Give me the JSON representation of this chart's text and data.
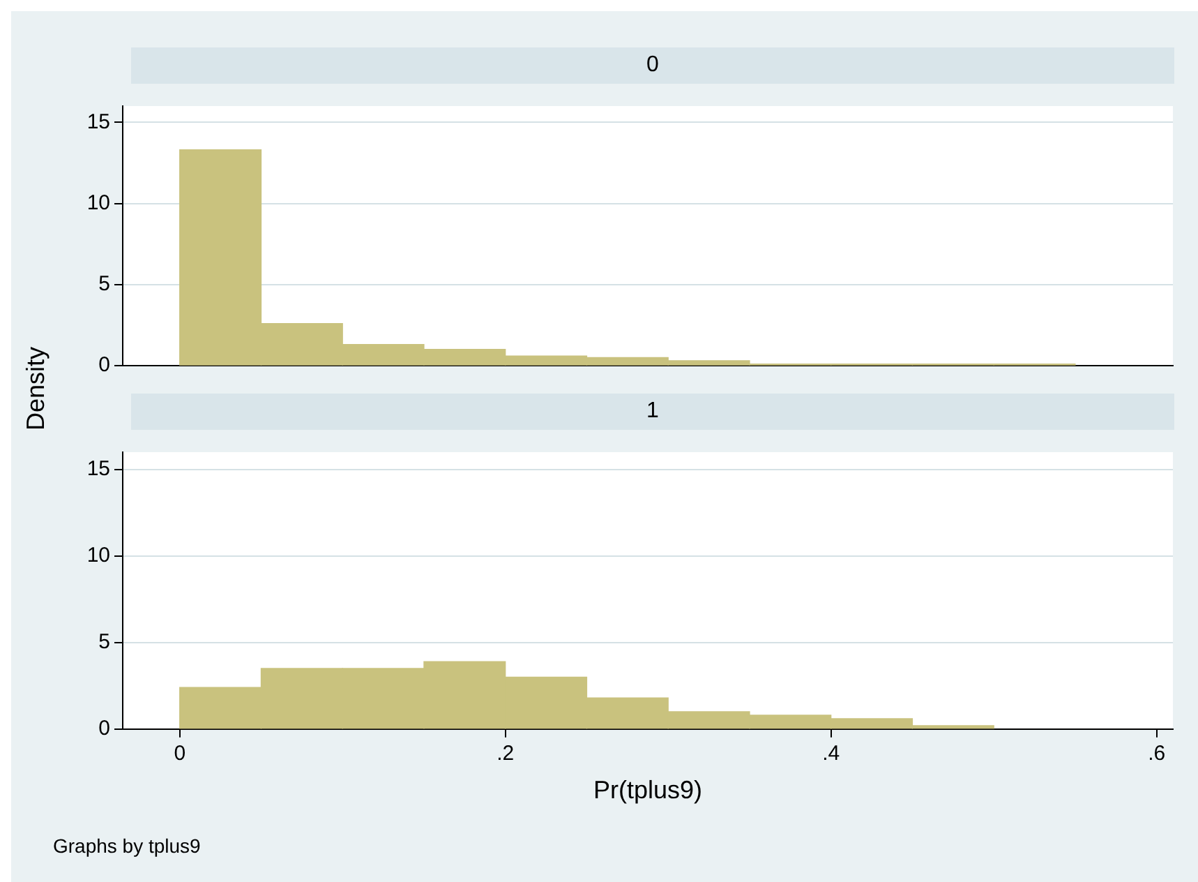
{
  "chart_data": [
    {
      "type": "histogram",
      "title": "0",
      "ylabel": "Density",
      "bins": [
        0,
        0.05,
        0.1,
        0.15,
        0.2,
        0.25,
        0.3,
        0.35,
        0.4,
        0.45,
        0.5,
        0.55
      ],
      "values": [
        13.3,
        2.6,
        1.3,
        1.0,
        0.6,
        0.5,
        0.3,
        0.1,
        0.1,
        0.1,
        0.1
      ],
      "color": "#c9c27e",
      "xlim": [
        -0.035,
        0.61
      ],
      "ylim": [
        0,
        16
      ],
      "yticks": [
        0,
        5,
        10,
        15
      ],
      "grid": "y",
      "tick_labels": "y",
      "legend": false
    },
    {
      "type": "histogram",
      "title": "1",
      "xlabel": "Pr(tplus9)",
      "bins": [
        0,
        0.05,
        0.1,
        0.15,
        0.2,
        0.25,
        0.3,
        0.35,
        0.4,
        0.45,
        0.5
      ],
      "values": [
        2.4,
        3.5,
        3.5,
        3.9,
        3.0,
        1.8,
        1.0,
        0.8,
        0.6,
        0.2
      ],
      "color": "#c9c27e",
      "xlim": [
        -0.035,
        0.61
      ],
      "xticks": [
        0,
        {
          "value": 0.2,
          "label": ".2"
        },
        {
          "value": 0.4,
          "label": ".4"
        },
        {
          "value": 0.6,
          "label": ".6"
        }
      ],
      "ylim": [
        0,
        16
      ],
      "yticks": [
        0,
        5,
        10,
        15
      ],
      "grid": "y",
      "legend": false,
      "annotations": [
        "Graphs by tplus9"
      ]
    }
  ]
}
